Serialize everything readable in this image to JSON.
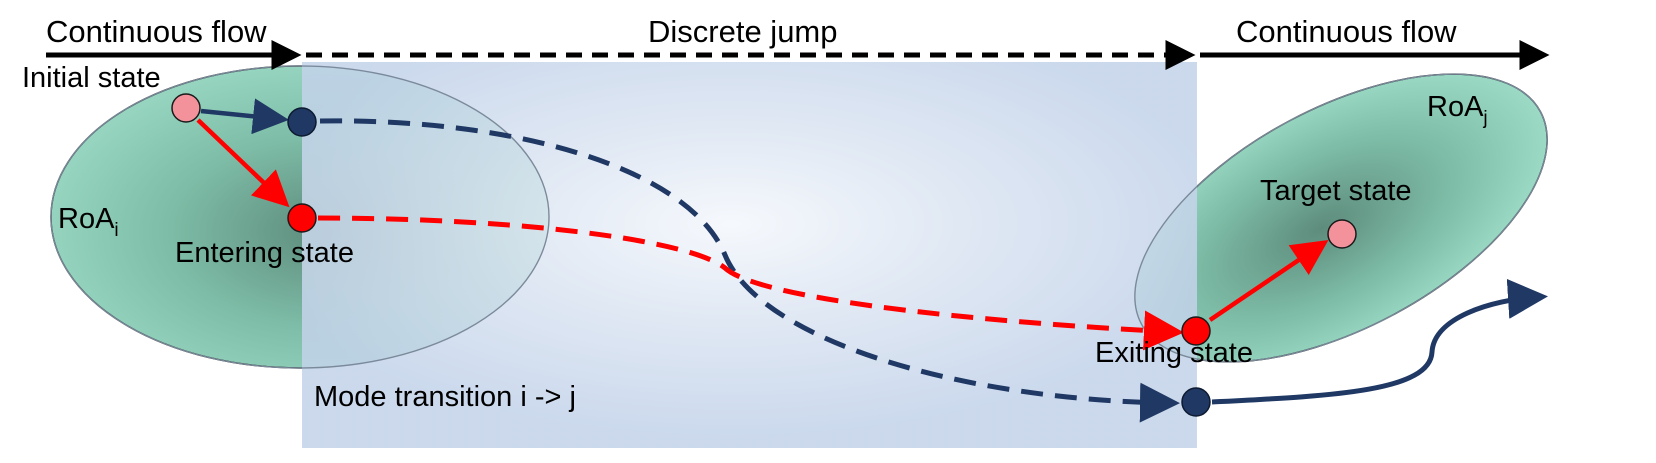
{
  "timeline": {
    "left_label": "Continuous flow",
    "middle_label": "Discrete jump",
    "right_label": "Continuous flow"
  },
  "roa_i": {
    "label_main": "RoA",
    "label_sub": "i"
  },
  "roa_j": {
    "label_main": "RoA",
    "label_sub": "j"
  },
  "states": {
    "initial": "Initial state",
    "entering": "Entering state",
    "exiting": "Exiting state",
    "target": "Target state"
  },
  "transition": {
    "label": "Mode transition i -> j"
  },
  "colors": {
    "roa_fill": "#9ad8c4",
    "roa_center": "#5e8c7c",
    "jump_region": "#c5d5ea",
    "navy": "#1f3864",
    "red": "#ff0000",
    "pink": "#f4929c"
  }
}
